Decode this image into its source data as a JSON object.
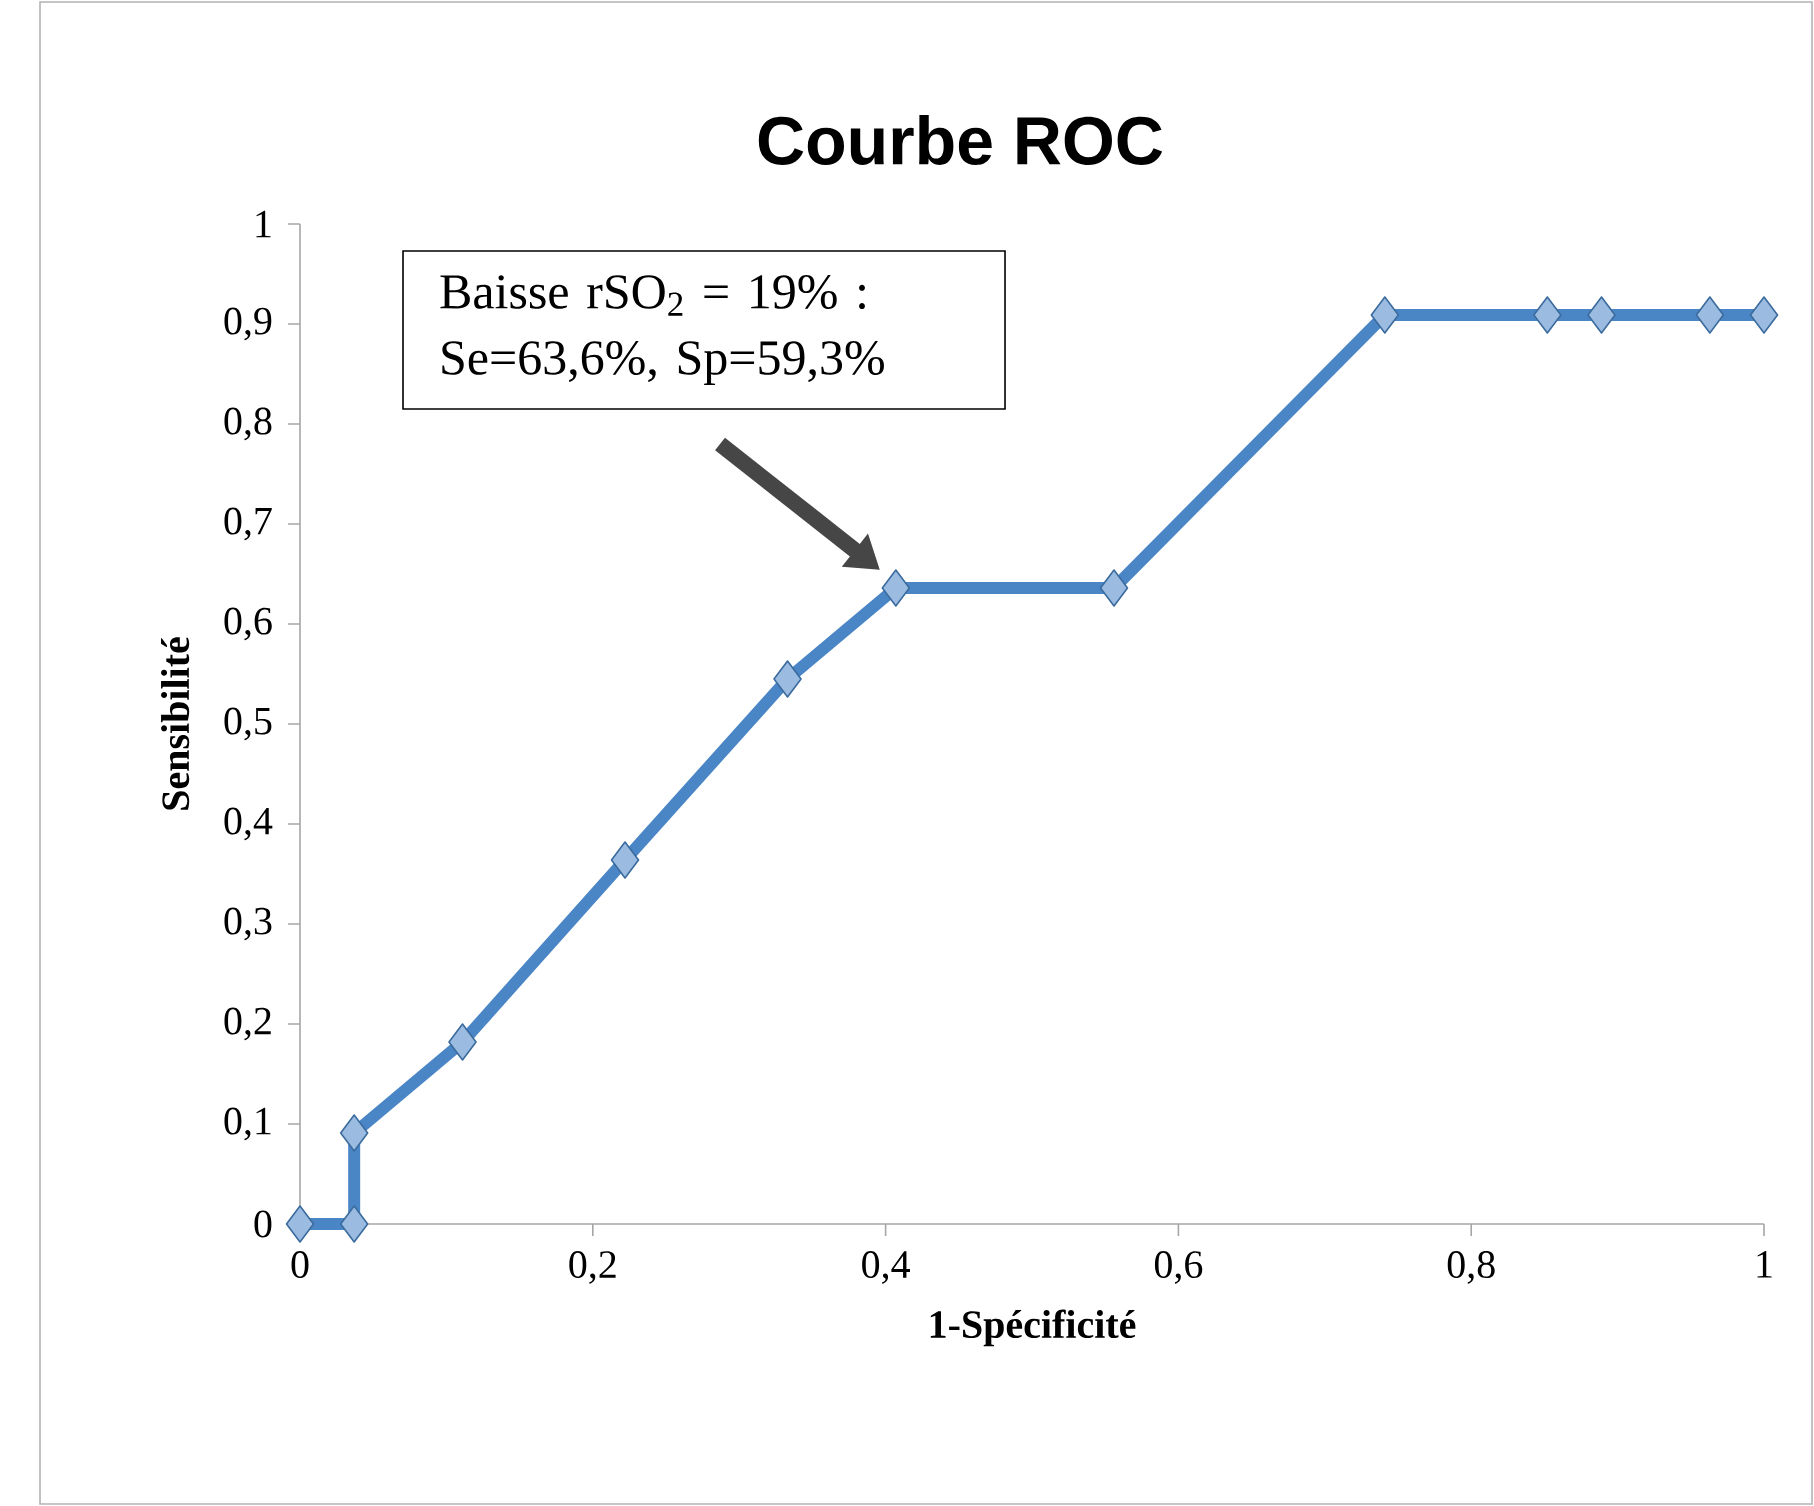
{
  "chart_data": {
    "type": "line",
    "title": "Courbe ROC",
    "xlabel": "1-Spécificité",
    "ylabel": "Sensibilité",
    "x": [
      0,
      0.037,
      0.037,
      0.111,
      0.222,
      0.333,
      0.407,
      0.556,
      0.741,
      0.852,
      0.889,
      0.963,
      1
    ],
    "series": [
      {
        "color": "#4a86c6",
        "values": [
          0,
          0,
          0.091,
          0.182,
          0.364,
          0.545,
          0.636,
          0.636,
          0.909,
          0.909,
          0.909,
          0.909,
          0.909
        ]
      }
    ],
    "xlim": [
      0,
      1
    ],
    "ylim": [
      0,
      1
    ],
    "xticks": [
      0,
      {
        "value": 0.2,
        "label": "0,2"
      },
      {
        "value": 0.4,
        "label": "0,4"
      },
      {
        "value": 0.6,
        "label": "0,6"
      },
      {
        "value": 0.8,
        "label": "0,8"
      },
      1
    ],
    "yticks": [
      0,
      {
        "value": 0.1,
        "label": "0,1"
      },
      {
        "value": 0.2,
        "label": "0,2"
      },
      {
        "value": 0.3,
        "label": "0,3"
      },
      {
        "value": 0.4,
        "label": "0,4"
      },
      {
        "value": 0.5,
        "label": "0,5"
      },
      {
        "value": 0.6,
        "label": "0,6"
      },
      {
        "value": 0.7,
        "label": "0,7"
      },
      {
        "value": 0.8,
        "label": "0,8"
      },
      {
        "value": 0.9,
        "label": "0,9"
      },
      1
    ],
    "marker": "diamond",
    "grid": false,
    "annotations": [
      "Baisse rSO$_{2}$ = 19% : Se=63,6%, Sp=59,3%"
    ]
  }
}
